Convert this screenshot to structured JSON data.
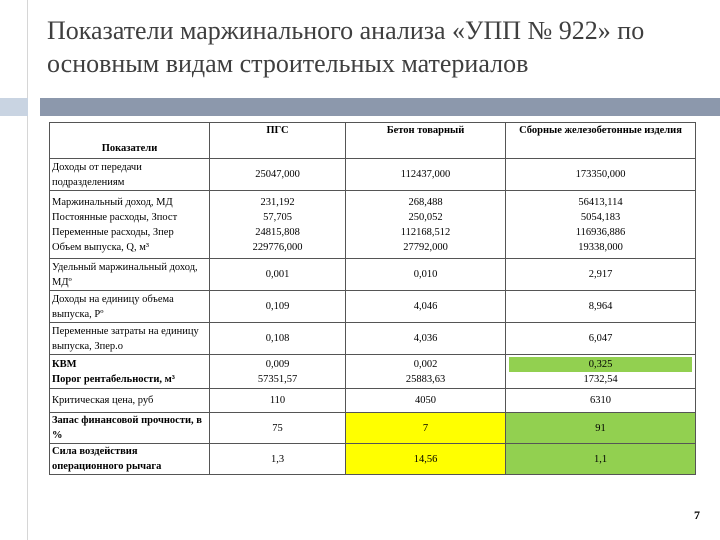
{
  "title": "Показатели маржинального анализа «УПП № 922» по основным видам строительных материалов",
  "page_number": "7",
  "colors": {
    "title_bar": "#8c98ac",
    "title_square": "#c9d4e2",
    "highlight_yellow": "#ffff00",
    "highlight_green": "#92d050"
  },
  "table": {
    "headers": [
      "Показатели",
      "ПГС",
      "Бетон товарный",
      "Сборные железобетонные изделия"
    ],
    "rows": [
      {
        "label": [
          "Доходы от передачи подразделениям"
        ],
        "values": [
          [
            "25047,000"
          ],
          [
            "112437,000"
          ],
          [
            "173350,000"
          ]
        ]
      },
      {
        "label": [
          "Маржинальный доход, МД",
          "Постоянные расходы, Зпост",
          "Переменные расходы, Зпер",
          "Объем выпуска, Q, м³"
        ],
        "values": [
          [
            "231,192",
            "57,705",
            "24815,808",
            "229776,000"
          ],
          [
            "268,488",
            "250,052",
            "112168,512",
            "27792,000"
          ],
          [
            "56413,114",
            "5054,183",
            "116936,886",
            "19338,000"
          ]
        ]
      },
      {
        "label": [
          "Удельный маржинальный доход, МДº"
        ],
        "values": [
          [
            "0,001"
          ],
          [
            "0,010"
          ],
          [
            "2,917"
          ]
        ]
      },
      {
        "label": [
          "Доходы на единицу объема выпуска, Рº"
        ],
        "values": [
          [
            "0,109"
          ],
          [
            "4,046"
          ],
          [
            "8,964"
          ]
        ]
      },
      {
        "label": [
          "Переменные затраты на единицу выпуска, Зпер.о"
        ],
        "values": [
          [
            "0,108"
          ],
          [
            "4,036"
          ],
          [
            "6,047"
          ]
        ]
      },
      {
        "label": [
          "КВМ",
          "Порог рентабельности, м³"
        ],
        "values": [
          [
            "0,009",
            "57351,57"
          ],
          [
            "0,002",
            "25883,63"
          ],
          [
            "0,325",
            "1732,54"
          ]
        ]
      },
      {
        "label": [
          "Критическая цена, руб"
        ],
        "values": [
          [
            "110"
          ],
          [
            "4050"
          ],
          [
            "6310"
          ]
        ]
      },
      {
        "label": [
          "Запас финансовой прочности, в %"
        ],
        "values": [
          [
            "75"
          ],
          [
            "7"
          ],
          [
            "91"
          ]
        ]
      },
      {
        "label": [
          "Сила воздействия операционного рычага"
        ],
        "values": [
          [
            "1,3"
          ],
          [
            "14,56"
          ],
          [
            "1,1"
          ]
        ]
      }
    ]
  }
}
